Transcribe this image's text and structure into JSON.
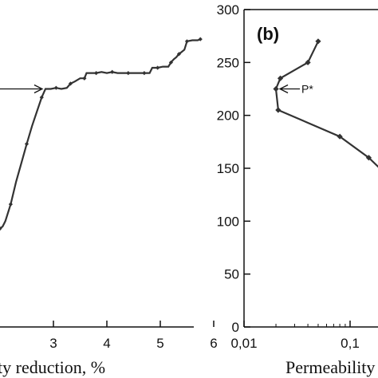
{
  "chart_data": [
    {
      "panel": "a",
      "type": "line",
      "xlabel": "ty reduction, %",
      "xlim": [
        2,
        6
      ],
      "ylim": [
        0,
        300
      ],
      "xticks": [
        3,
        4,
        5,
        6
      ],
      "color": "#333333",
      "series": [
        {
          "x": [
            2.0,
            2.05,
            2.1,
            2.2,
            2.3,
            2.4,
            2.5,
            2.6,
            2.7,
            2.78,
            2.85,
            2.95,
            3.05,
            3.15,
            3.25,
            3.32,
            3.4,
            3.5,
            3.58,
            3.62,
            3.7,
            3.8,
            3.9,
            4.0,
            4.1,
            4.2,
            4.3,
            4.4,
            4.5,
            4.6,
            4.7,
            4.8,
            4.85,
            4.95,
            5.05,
            5.15,
            5.2,
            5.25,
            5.3,
            5.35,
            5.4,
            5.45,
            5.5,
            5.6,
            5.7,
            5.75
          ],
          "y": [
            93,
            95,
            100,
            116,
            137,
            155,
            173,
            190,
            205,
            217,
            225,
            225,
            226,
            225,
            226,
            230,
            232,
            235,
            235,
            240,
            240,
            240,
            241,
            240,
            241,
            240,
            240,
            240,
            240,
            240,
            240,
            240,
            245,
            245,
            246,
            246,
            250,
            253,
            255,
            258,
            260,
            262,
            270,
            271,
            271,
            272
          ]
        }
      ],
      "annotation": {
        "label": "",
        "x": 2.85,
        "y": 225
      }
    },
    {
      "panel": "b",
      "type": "line",
      "panel_label": "(b)",
      "xlabel": "Permeability",
      "xscale": "log",
      "xlim": [
        0.01,
        0.2
      ],
      "ylim": [
        0,
        300
      ],
      "xticks": [
        0.01,
        0.1
      ],
      "xtick_labels": [
        "0,01",
        "0,1"
      ],
      "yticks": [
        0,
        50,
        100,
        150,
        200,
        250,
        300
      ],
      "color": "#333333",
      "series": [
        {
          "x": [
            0.05,
            0.04,
            0.022,
            0.02,
            0.021,
            0.08,
            0.15,
            0.2
          ],
          "y": [
            270,
            250,
            235,
            225,
            205,
            180,
            160,
            148
          ]
        }
      ],
      "annotation": {
        "label": "P*",
        "x": 0.02,
        "y": 225
      }
    }
  ]
}
